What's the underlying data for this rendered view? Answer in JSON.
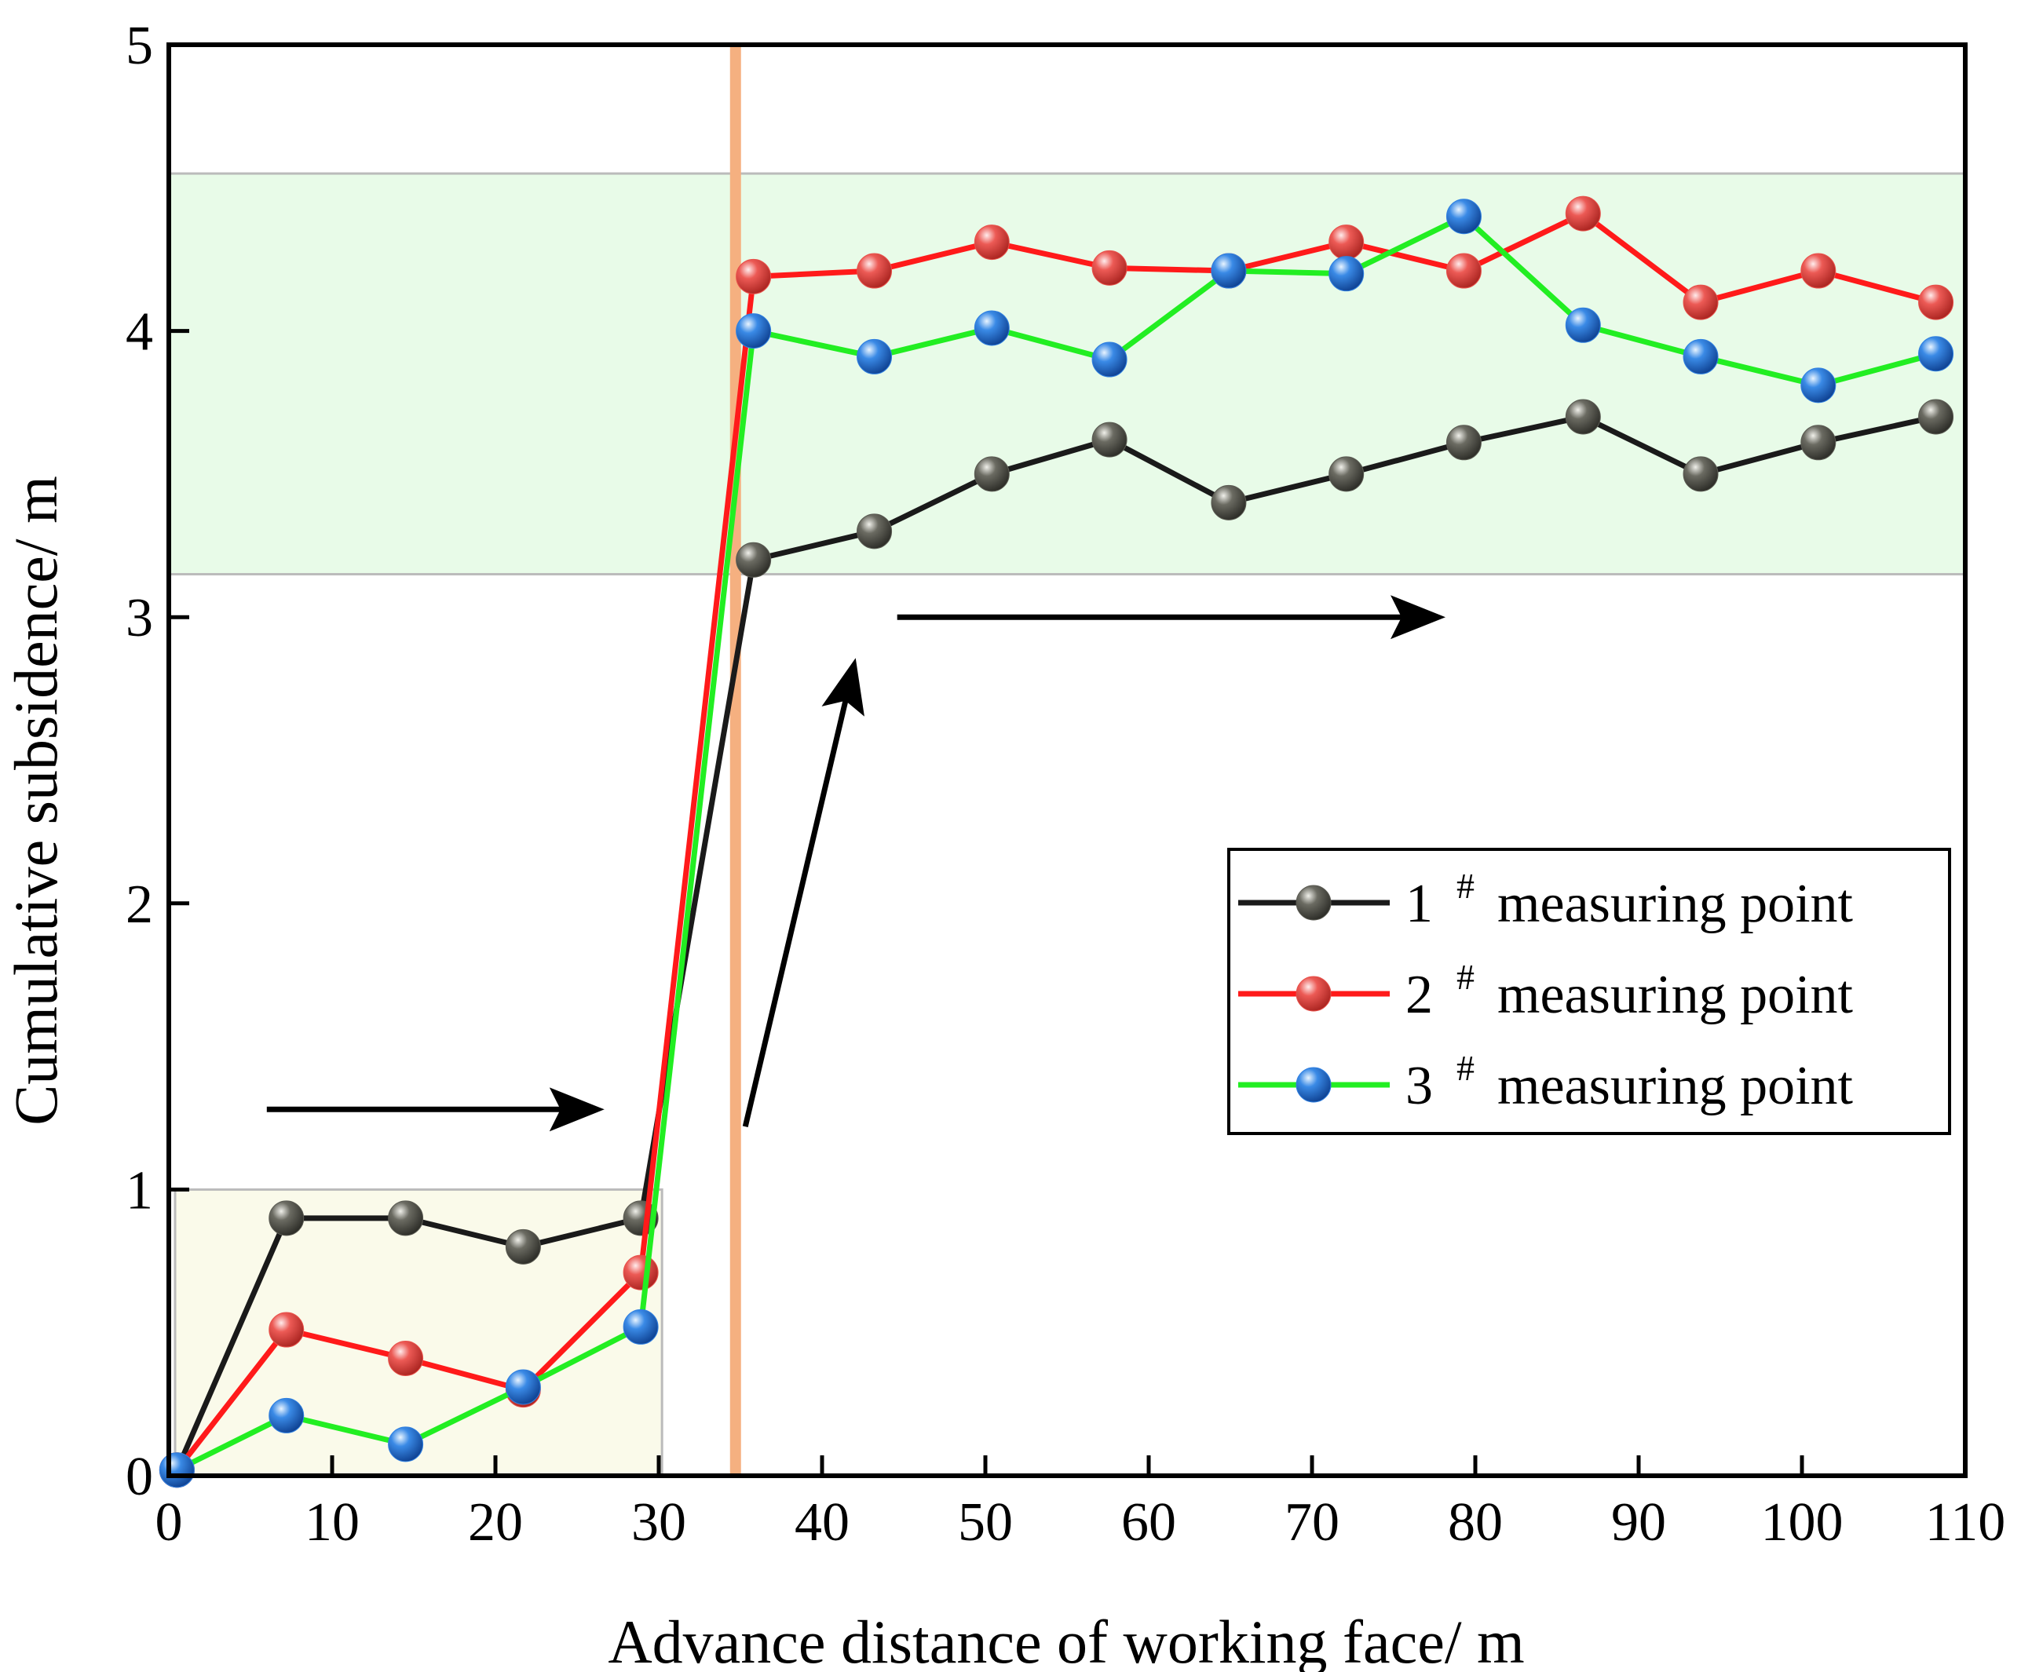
{
  "chart_data": {
    "type": "line",
    "title": "",
    "xlabel": "Advance distance of working face/ m",
    "ylabel": "Cumulative subsidence/ m",
    "xlim": [
      0,
      110
    ],
    "ylim": [
      0,
      5
    ],
    "xticks": [
      0,
      10,
      20,
      30,
      40,
      50,
      60,
      70,
      80,
      90,
      100,
      110
    ],
    "yticks": [
      0,
      1,
      2,
      3,
      4,
      5
    ],
    "legend_position": "center-right",
    "series": [
      {
        "name": "1 # measuring point",
        "label_num": "1",
        "label_sup": "#",
        "label_rest": "measuring point",
        "line_color": "#1a1a1a",
        "marker_color": "#5a5a52",
        "x": [
          0.5,
          7.2,
          14.5,
          21.7,
          28.9,
          35.8,
          43.2,
          50.4,
          57.6,
          64.9,
          72.1,
          79.3,
          86.6,
          93.8,
          101.0,
          108.2
        ],
        "y": [
          0.02,
          0.9,
          0.9,
          0.8,
          0.9,
          3.2,
          3.3,
          3.5,
          3.62,
          3.4,
          3.5,
          3.61,
          3.7,
          3.5,
          3.61,
          3.7
        ]
      },
      {
        "name": "2 # measuring point",
        "label_num": "2",
        "label_sup": "#",
        "label_rest": "measuring point",
        "line_color": "#ff1a1a",
        "marker_color": "#e8504a",
        "x": [
          0.5,
          7.2,
          14.5,
          21.7,
          28.9,
          35.8,
          43.2,
          50.4,
          57.6,
          64.9,
          72.1,
          79.3,
          86.6,
          93.8,
          101.0,
          108.2
        ],
        "y": [
          0.02,
          0.51,
          0.41,
          0.3,
          0.71,
          4.19,
          4.21,
          4.31,
          4.22,
          4.21,
          4.31,
          4.21,
          4.41,
          4.1,
          4.21,
          4.1
        ]
      },
      {
        "name": "3 # measuring point",
        "label_num": "3",
        "label_sup": "#",
        "label_rest": "measuring point",
        "line_color": "#22ee22",
        "marker_color": "#2f7fe0",
        "x": [
          0.5,
          7.2,
          14.5,
          21.7,
          28.9,
          35.8,
          43.2,
          50.4,
          57.6,
          64.9,
          72.1,
          79.3,
          86.6,
          93.8,
          101.0,
          108.2
        ],
        "y": [
          0.02,
          0.21,
          0.11,
          0.31,
          0.52,
          4.0,
          3.91,
          4.01,
          3.9,
          4.21,
          4.2,
          4.4,
          4.02,
          3.91,
          3.81,
          3.92
        ]
      }
    ],
    "annotations": {
      "vertical_line": {
        "x": 34.7,
        "color": "#f5b080"
      },
      "shaded_regions": [
        {
          "x_range": [
            0,
            30.2
          ],
          "y_range": [
            0,
            1.0
          ],
          "fill": "#fafaea",
          "stroke": "#bbbbbb"
        },
        {
          "x_range": [
            0,
            110
          ],
          "y_range": [
            3.15,
            4.55
          ],
          "fill": "#e8fbe8",
          "stroke": "#bbbbbb"
        }
      ],
      "arrows": [
        {
          "from": [
            6,
            1.28
          ],
          "to": [
            26,
            1.28
          ]
        },
        {
          "from": [
            35.3,
            1.22
          ],
          "to": [
            41.9,
            2.82
          ]
        },
        {
          "from": [
            44.6,
            3.0
          ],
          "to": [
            77.5,
            3.0
          ]
        }
      ]
    }
  }
}
